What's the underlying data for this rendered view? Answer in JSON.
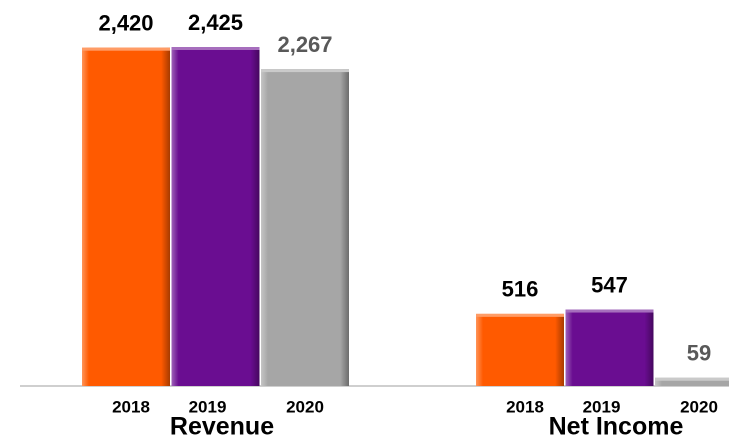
{
  "chart_data": {
    "type": "bar",
    "categories": [
      "Revenue",
      "Net Income"
    ],
    "series": [
      {
        "name": "2018",
        "color": "#ff5a00",
        "values": [
          2420,
          516
        ],
        "value_labels": [
          "2,420",
          "516"
        ]
      },
      {
        "name": "2019",
        "color": "#6a0d91",
        "values": [
          2425,
          547
        ],
        "value_labels": [
          "2,425",
          "547"
        ]
      },
      {
        "name": "2020",
        "color": "#a6a6a6",
        "values": [
          2267,
          59
        ],
        "value_labels": [
          "2,267",
          "59"
        ]
      }
    ]
  }
}
